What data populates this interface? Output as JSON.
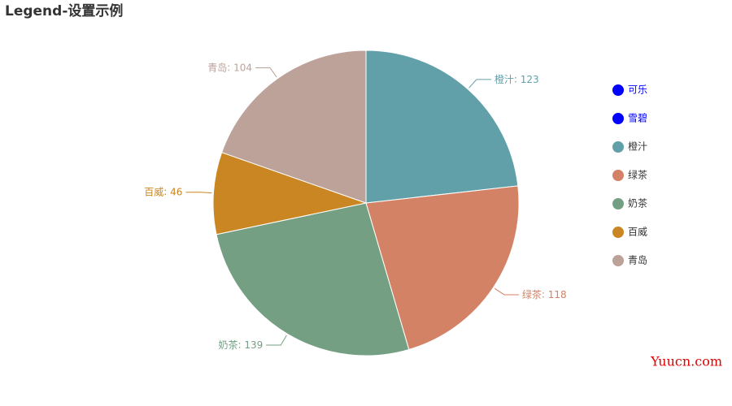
{
  "chart_data": {
    "type": "pie",
    "title": "Legend-设置示例",
    "categories": [
      "橙汁",
      "绿茶",
      "奶茶",
      "百威",
      "青岛"
    ],
    "values": [
      123,
      118,
      139,
      46,
      104
    ],
    "colors": [
      "#61a0a8",
      "#d48265",
      "#749f83",
      "#ca8622",
      "#bda29a"
    ],
    "legend": [
      {
        "name": "可乐",
        "color": "#0000ff"
      },
      {
        "name": "雪碧",
        "color": "#0000ff"
      },
      {
        "name": "橙汁",
        "color": "#61a0a8"
      },
      {
        "name": "绿茶",
        "color": "#d48265"
      },
      {
        "name": "奶茶",
        "color": "#749f83"
      },
      {
        "name": "百威",
        "color": "#ca8622"
      },
      {
        "name": "青岛",
        "color": "#bda29a"
      }
    ],
    "legend_position": "right",
    "watermark": "Yuucn.com"
  }
}
